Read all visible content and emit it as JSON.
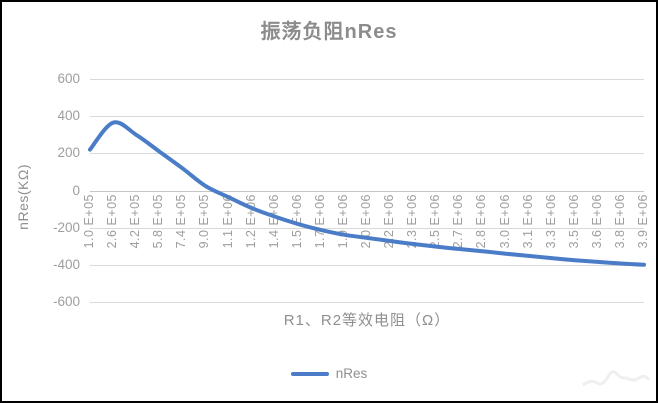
{
  "chart_data": {
    "type": "line",
    "title": "振荡负阻nRes",
    "xlabel": "R1、R2等效电阻（Ω）",
    "ylabel": "nRes(KΩ)",
    "grid": true,
    "legend_position": "bottom",
    "ylim": [
      -600,
      600
    ],
    "yticks": [
      600,
      400,
      200,
      0,
      -200,
      -400,
      -600
    ],
    "categories": [
      "1.0 E+05",
      "2.6 E+05",
      "4.2 E+05",
      "5.8 E+05",
      "7.4 E+05",
      "9.0 E+05",
      "1.1 E+06",
      "1.2 E+06",
      "1.4 E+06",
      "1.5 E+06",
      "1.7 E+06",
      "1.9 E+06",
      "2.0 E+06",
      "2.2 E+06",
      "2.3 E+06",
      "2.5 E+06",
      "2.7 E+06",
      "2.8 E+06",
      "3.0 E+06",
      "3.1 E+06",
      "3.3 E+06",
      "3.5 E+06",
      "3.6 E+06",
      "3.8 E+06",
      "3.9 E+06"
    ],
    "series": [
      {
        "name": "nRes",
        "values": [
          220,
          365,
          300,
          210,
          120,
          25,
          -36,
          -94,
          -140,
          -180,
          -212,
          -238,
          -255,
          -272,
          -288,
          -302,
          -315,
          -327,
          -340,
          -352,
          -364,
          -375,
          -384,
          -393,
          -400
        ]
      }
    ],
    "colors": {
      "line": "#4a7cc7",
      "grid": "#d9d9d9",
      "zero_axis": "#c6c6c6",
      "title_text": "#8c8c8c",
      "axis_text": "#9e9e9e",
      "axis_title_text": "#8f8f8f",
      "legend_text": "#8f8f8f",
      "watermark": "#f0eeee"
    }
  }
}
